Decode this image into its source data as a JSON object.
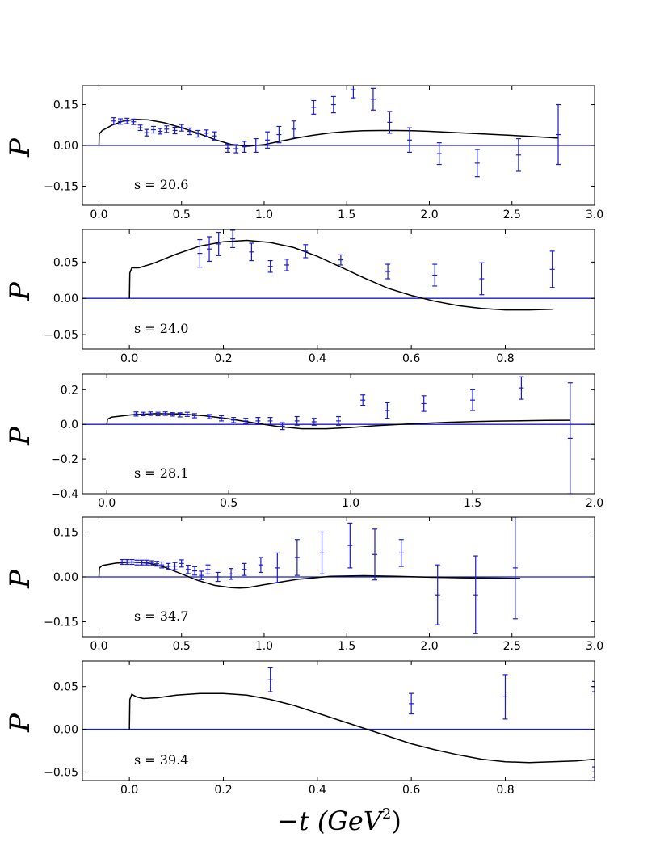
{
  "figure": {
    "xlabel_prefix": "−t",
    "xlabel_unit": "(GeV",
    "xlabel_exp": "2",
    "xlabel_close": ")"
  },
  "colors": {
    "data": "#1a1acc",
    "model": "#000000",
    "zero_line": "#1a1acc"
  },
  "chart_data": [
    {
      "type": "scatter",
      "panel_label": "s = 20.6",
      "ylabel": "P",
      "xlim": [
        -0.1,
        3.0
      ],
      "ylim": [
        -0.22,
        0.22
      ],
      "xticks": [
        0.0,
        0.5,
        1.0,
        1.5,
        2.0,
        2.5,
        3.0
      ],
      "xtick_labels": [
        "0.0",
        "0.5",
        "1.0",
        "1.5",
        "2.0",
        "2.5",
        "3.0"
      ],
      "yticks": [
        0.15,
        0.0,
        -0.15
      ],
      "ytick_labels": [
        "0.15",
        "0.00",
        "−0.15"
      ],
      "points": [
        {
          "x": 0.09,
          "y": 0.09,
          "err": 0.012
        },
        {
          "x": 0.13,
          "y": 0.088,
          "err": 0.01
        },
        {
          "x": 0.17,
          "y": 0.09,
          "err": 0.01
        },
        {
          "x": 0.21,
          "y": 0.087,
          "err": 0.01
        },
        {
          "x": 0.25,
          "y": 0.065,
          "err": 0.01
        },
        {
          "x": 0.29,
          "y": 0.047,
          "err": 0.012
        },
        {
          "x": 0.33,
          "y": 0.058,
          "err": 0.012
        },
        {
          "x": 0.37,
          "y": 0.052,
          "err": 0.01
        },
        {
          "x": 0.41,
          "y": 0.06,
          "err": 0.012
        },
        {
          "x": 0.46,
          "y": 0.055,
          "err": 0.012
        },
        {
          "x": 0.5,
          "y": 0.065,
          "err": 0.012
        },
        {
          "x": 0.55,
          "y": 0.052,
          "err": 0.012
        },
        {
          "x": 0.6,
          "y": 0.043,
          "err": 0.012
        },
        {
          "x": 0.65,
          "y": 0.045,
          "err": 0.012
        },
        {
          "x": 0.7,
          "y": 0.035,
          "err": 0.015
        },
        {
          "x": 0.78,
          "y": -0.01,
          "err": 0.015
        },
        {
          "x": 0.83,
          "y": -0.012,
          "err": 0.015
        },
        {
          "x": 0.88,
          "y": -0.005,
          "err": 0.02
        },
        {
          "x": 0.95,
          "y": 0.0,
          "err": 0.025
        },
        {
          "x": 1.02,
          "y": 0.02,
          "err": 0.03
        },
        {
          "x": 1.09,
          "y": 0.04,
          "err": 0.03
        },
        {
          "x": 1.18,
          "y": 0.06,
          "err": 0.03
        },
        {
          "x": 1.3,
          "y": 0.14,
          "err": 0.025
        },
        {
          "x": 1.42,
          "y": 0.15,
          "err": 0.03
        },
        {
          "x": 1.54,
          "y": 0.205,
          "err": 0.03
        },
        {
          "x": 1.66,
          "y": 0.17,
          "err": 0.04
        },
        {
          "x": 1.76,
          "y": 0.085,
          "err": 0.04
        },
        {
          "x": 1.88,
          "y": 0.02,
          "err": 0.045
        },
        {
          "x": 2.06,
          "y": -0.03,
          "err": 0.04
        },
        {
          "x": 2.29,
          "y": -0.065,
          "err": 0.05
        },
        {
          "x": 2.54,
          "y": -0.035,
          "err": 0.06
        },
        {
          "x": 2.78,
          "y": 0.04,
          "err": 0.11
        }
      ],
      "model": {
        "x": [
          0.0,
          0.002,
          0.02,
          0.08,
          0.15,
          0.22,
          0.3,
          0.4,
          0.5,
          0.6,
          0.7,
          0.8,
          0.9,
          1.0,
          1.1,
          1.2,
          1.3,
          1.4,
          1.5,
          1.6,
          1.7,
          1.8,
          1.9,
          2.0,
          2.2,
          2.4,
          2.6,
          2.78
        ],
        "y": [
          0.0,
          0.042,
          0.055,
          0.075,
          0.09,
          0.096,
          0.094,
          0.083,
          0.065,
          0.045,
          0.022,
          0.004,
          -0.003,
          0.003,
          0.016,
          0.028,
          0.038,
          0.046,
          0.051,
          0.054,
          0.055,
          0.055,
          0.054,
          0.052,
          0.046,
          0.04,
          0.034,
          0.027
        ]
      }
    },
    {
      "type": "scatter",
      "panel_label": "s = 24.0",
      "ylabel": "P",
      "xlim": [
        -0.1,
        0.99
      ],
      "ylim": [
        -0.07,
        0.095
      ],
      "xticks": [
        0.0,
        0.2,
        0.4,
        0.6,
        0.8
      ],
      "xtick_labels": [
        "0.0",
        "0.2",
        "0.4",
        "0.6",
        "0.8"
      ],
      "yticks": [
        0.05,
        0.0,
        -0.05
      ],
      "ytick_labels": [
        "0.05",
        "0.00",
        "−0.05"
      ],
      "points": [
        {
          "x": 0.15,
          "y": 0.062,
          "err": 0.019
        },
        {
          "x": 0.17,
          "y": 0.068,
          "err": 0.017
        },
        {
          "x": 0.19,
          "y": 0.075,
          "err": 0.016
        },
        {
          "x": 0.22,
          "y": 0.082,
          "err": 0.012
        },
        {
          "x": 0.26,
          "y": 0.064,
          "err": 0.012
        },
        {
          "x": 0.3,
          "y": 0.044,
          "err": 0.008
        },
        {
          "x": 0.335,
          "y": 0.046,
          "err": 0.008
        },
        {
          "x": 0.375,
          "y": 0.065,
          "err": 0.009
        },
        {
          "x": 0.45,
          "y": 0.053,
          "err": 0.007
        },
        {
          "x": 0.55,
          "y": 0.037,
          "err": 0.01
        },
        {
          "x": 0.65,
          "y": 0.032,
          "err": 0.015
        },
        {
          "x": 0.75,
          "y": 0.027,
          "err": 0.022
        },
        {
          "x": 0.9,
          "y": 0.04,
          "err": 0.025
        }
      ],
      "model": {
        "x": [
          0.0,
          0.001,
          0.005,
          0.02,
          0.05,
          0.1,
          0.15,
          0.2,
          0.25,
          0.3,
          0.35,
          0.4,
          0.45,
          0.5,
          0.55,
          0.6,
          0.65,
          0.7,
          0.75,
          0.8,
          0.85,
          0.9
        ],
        "y": [
          0.0,
          0.035,
          0.042,
          0.042,
          0.048,
          0.061,
          0.072,
          0.078,
          0.08,
          0.077,
          0.07,
          0.058,
          0.043,
          0.028,
          0.014,
          0.004,
          -0.004,
          -0.01,
          -0.014,
          -0.016,
          -0.016,
          -0.015
        ]
      }
    },
    {
      "type": "scatter",
      "panel_label": "s = 28.1",
      "ylabel": "P",
      "xlim": [
        -0.1,
        2.0
      ],
      "ylim": [
        -0.4,
        0.29
      ],
      "xticks": [
        0.0,
        0.5,
        1.0,
        1.5,
        2.0
      ],
      "xtick_labels": [
        "0.0",
        "0.5",
        "1.0",
        "1.5",
        "2.0"
      ],
      "yticks": [
        0.2,
        0.0,
        -0.2,
        -0.4
      ],
      "ytick_labels": [
        "0.2",
        "0.0",
        "−0.2",
        "−0.4"
      ],
      "points": [
        {
          "x": 0.12,
          "y": 0.06,
          "err": 0.012
        },
        {
          "x": 0.15,
          "y": 0.06,
          "err": 0.01
        },
        {
          "x": 0.18,
          "y": 0.062,
          "err": 0.01
        },
        {
          "x": 0.21,
          "y": 0.06,
          "err": 0.01
        },
        {
          "x": 0.24,
          "y": 0.062,
          "err": 0.01
        },
        {
          "x": 0.27,
          "y": 0.058,
          "err": 0.01
        },
        {
          "x": 0.3,
          "y": 0.055,
          "err": 0.012
        },
        {
          "x": 0.33,
          "y": 0.058,
          "err": 0.012
        },
        {
          "x": 0.36,
          "y": 0.05,
          "err": 0.012
        },
        {
          "x": 0.42,
          "y": 0.045,
          "err": 0.012
        },
        {
          "x": 0.47,
          "y": 0.035,
          "err": 0.015
        },
        {
          "x": 0.52,
          "y": 0.025,
          "err": 0.015
        },
        {
          "x": 0.57,
          "y": 0.02,
          "err": 0.015
        },
        {
          "x": 0.62,
          "y": 0.02,
          "err": 0.02
        },
        {
          "x": 0.67,
          "y": 0.02,
          "err": 0.02
        },
        {
          "x": 0.72,
          "y": -0.01,
          "err": 0.02
        },
        {
          "x": 0.78,
          "y": 0.02,
          "err": 0.025
        },
        {
          "x": 0.85,
          "y": 0.015,
          "err": 0.02
        },
        {
          "x": 0.95,
          "y": 0.02,
          "err": 0.025
        },
        {
          "x": 1.05,
          "y": 0.14,
          "err": 0.03
        },
        {
          "x": 1.15,
          "y": 0.08,
          "err": 0.045
        },
        {
          "x": 1.3,
          "y": 0.12,
          "err": 0.045
        },
        {
          "x": 1.5,
          "y": 0.14,
          "err": 0.06
        },
        {
          "x": 1.7,
          "y": 0.21,
          "err": 0.065
        },
        {
          "x": 1.9,
          "y": -0.08,
          "err": 0.32
        }
      ],
      "model": {
        "x": [
          0.0,
          0.003,
          0.02,
          0.1,
          0.2,
          0.3,
          0.4,
          0.5,
          0.6,
          0.7,
          0.8,
          0.9,
          1.0,
          1.1,
          1.2,
          1.3,
          1.4,
          1.5,
          1.6,
          1.7,
          1.8,
          1.9
        ],
        "y": [
          0.0,
          0.03,
          0.042,
          0.055,
          0.062,
          0.06,
          0.05,
          0.032,
          0.01,
          -0.012,
          -0.025,
          -0.025,
          -0.018,
          -0.008,
          0.0,
          0.006,
          0.012,
          0.016,
          0.019,
          0.021,
          0.023,
          0.024
        ]
      }
    },
    {
      "type": "scatter",
      "panel_label": "s = 34.7",
      "ylabel": "P",
      "xlim": [
        -0.1,
        3.0
      ],
      "ylim": [
        -0.2,
        0.2
      ],
      "xticks": [
        0.0,
        0.5,
        1.0,
        1.5,
        2.0,
        2.5,
        3.0
      ],
      "xtick_labels": [
        "0.0",
        "0.5",
        "1.0",
        "1.5",
        "2.0",
        "2.5",
        "3.0"
      ],
      "yticks": [
        0.15,
        0.0,
        -0.15
      ],
      "ytick_labels": [
        "0.15",
        "0.00",
        "−0.15"
      ],
      "points": [
        {
          "x": 0.14,
          "y": 0.05,
          "err": 0.008
        },
        {
          "x": 0.17,
          "y": 0.05,
          "err": 0.008
        },
        {
          "x": 0.2,
          "y": 0.05,
          "err": 0.008
        },
        {
          "x": 0.23,
          "y": 0.048,
          "err": 0.008
        },
        {
          "x": 0.26,
          "y": 0.048,
          "err": 0.008
        },
        {
          "x": 0.29,
          "y": 0.048,
          "err": 0.008
        },
        {
          "x": 0.32,
          "y": 0.046,
          "err": 0.008
        },
        {
          "x": 0.35,
          "y": 0.044,
          "err": 0.008
        },
        {
          "x": 0.38,
          "y": 0.04,
          "err": 0.01
        },
        {
          "x": 0.42,
          "y": 0.035,
          "err": 0.01
        },
        {
          "x": 0.46,
          "y": 0.036,
          "err": 0.012
        },
        {
          "x": 0.5,
          "y": 0.045,
          "err": 0.012
        },
        {
          "x": 0.54,
          "y": 0.025,
          "err": 0.014
        },
        {
          "x": 0.58,
          "y": 0.02,
          "err": 0.014
        },
        {
          "x": 0.62,
          "y": 0.005,
          "err": 0.014
        },
        {
          "x": 0.66,
          "y": 0.025,
          "err": 0.015
        },
        {
          "x": 0.72,
          "y": 0.0,
          "err": 0.015
        },
        {
          "x": 0.8,
          "y": 0.01,
          "err": 0.018
        },
        {
          "x": 0.88,
          "y": 0.025,
          "err": 0.02
        },
        {
          "x": 0.98,
          "y": 0.04,
          "err": 0.025
        },
        {
          "x": 1.08,
          "y": 0.03,
          "err": 0.05
        },
        {
          "x": 1.2,
          "y": 0.065,
          "err": 0.06
        },
        {
          "x": 1.35,
          "y": 0.08,
          "err": 0.07
        },
        {
          "x": 1.52,
          "y": 0.105,
          "err": 0.075
        },
        {
          "x": 1.67,
          "y": 0.075,
          "err": 0.085
        },
        {
          "x": 1.83,
          "y": 0.08,
          "err": 0.045
        },
        {
          "x": 2.05,
          "y": -0.06,
          "err": 0.1
        },
        {
          "x": 2.28,
          "y": -0.06,
          "err": 0.13
        },
        {
          "x": 2.52,
          "y": 0.03,
          "err": 0.17
        }
      ],
      "model": {
        "x": [
          0.0,
          0.003,
          0.02,
          0.1,
          0.2,
          0.3,
          0.4,
          0.5,
          0.6,
          0.7,
          0.8,
          0.85,
          0.9,
          1.0,
          1.2,
          1.4,
          1.6,
          1.8,
          2.0,
          2.2,
          2.4,
          2.55
        ],
        "y": [
          0.0,
          0.03,
          0.038,
          0.046,
          0.05,
          0.046,
          0.032,
          0.01,
          -0.012,
          -0.028,
          -0.036,
          -0.037,
          -0.036,
          -0.026,
          -0.008,
          0.002,
          0.004,
          0.002,
          -0.001,
          -0.003,
          -0.004,
          -0.005
        ]
      }
    },
    {
      "type": "scatter",
      "panel_label": "s = 39.4",
      "ylabel": "P",
      "xlim": [
        -0.1,
        0.99
      ],
      "ylim": [
        -0.06,
        0.08
      ],
      "xticks": [
        0.0,
        0.2,
        0.4,
        0.6,
        0.8
      ],
      "xtick_labels": [
        "0.0",
        "0.2",
        "0.4",
        "0.6",
        "0.8"
      ],
      "yticks": [
        0.05,
        0.0,
        -0.05
      ],
      "ytick_labels": [
        "0.05",
        "0.00",
        "−0.05"
      ],
      "points": [
        {
          "x": 0.3,
          "y": 0.058,
          "err": 0.014
        },
        {
          "x": 0.6,
          "y": 0.03,
          "err": 0.012
        },
        {
          "x": 0.8,
          "y": 0.038,
          "err": 0.026
        },
        {
          "x": 0.99,
          "y": 0.05,
          "err": 0.006
        },
        {
          "x": 0.99,
          "y": -0.05,
          "err": 0.006
        }
      ],
      "model": {
        "x": [
          0.0,
          0.001,
          0.005,
          0.015,
          0.03,
          0.06,
          0.1,
          0.15,
          0.2,
          0.25,
          0.3,
          0.35,
          0.4,
          0.45,
          0.5,
          0.55,
          0.6,
          0.65,
          0.7,
          0.75,
          0.8,
          0.85,
          0.9,
          0.95,
          0.99
        ],
        "y": [
          0.0,
          0.035,
          0.041,
          0.038,
          0.036,
          0.037,
          0.04,
          0.042,
          0.042,
          0.04,
          0.035,
          0.028,
          0.019,
          0.01,
          0.001,
          -0.008,
          -0.017,
          -0.024,
          -0.03,
          -0.035,
          -0.038,
          -0.039,
          -0.038,
          -0.037,
          -0.035
        ]
      }
    }
  ]
}
